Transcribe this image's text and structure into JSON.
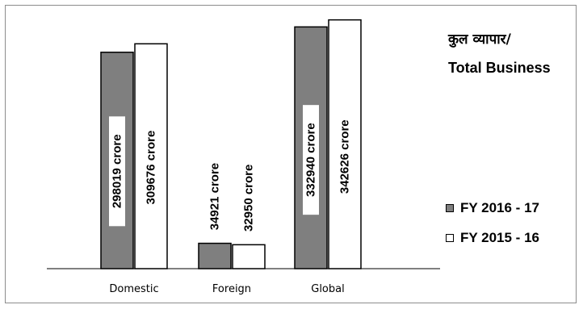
{
  "chart_data": {
    "type": "bar",
    "categories": [
      "Domestic",
      "Foreign",
      "Global"
    ],
    "series": [
      {
        "name": "FY 2016 - 17",
        "values": [
          298019,
          34921,
          332940
        ],
        "labels": [
          "298019 crore",
          "34921 crore",
          "332940 crore"
        ],
        "color": "#7f7f7f"
      },
      {
        "name": "FY 2015 - 16",
        "values": [
          309676,
          32950,
          342626
        ],
        "labels": [
          "309676 crore",
          "32950 crore",
          "342626 crore"
        ],
        "color": "#ffffff"
      }
    ],
    "title": "कुल व्यापार/",
    "subtitle": "Total Business",
    "xlabel": "",
    "ylabel": "",
    "ylim": [
      0,
      370000
    ],
    "grid": false,
    "legend_position": "right"
  }
}
